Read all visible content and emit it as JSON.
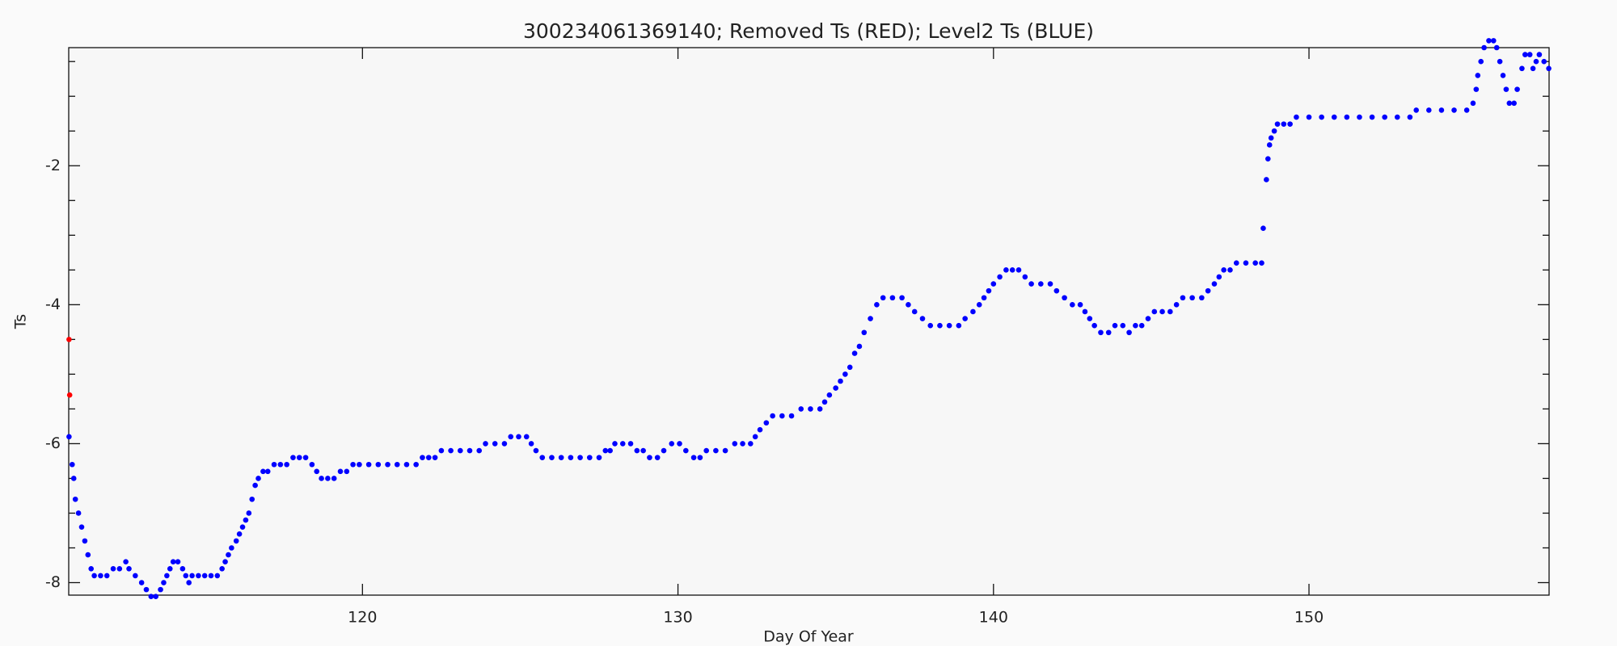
{
  "chart_data": {
    "type": "scatter",
    "title": "300234061369140; Removed Ts (RED); Level2 Ts (BLUE)",
    "x_label": "Day Of Year",
    "y_label": "Ts",
    "xlim": [
      110.69,
      157.61
    ],
    "ylim": [
      -8.18,
      -0.3
    ],
    "xticks": [
      120,
      130,
      140,
      150
    ],
    "yticks": [
      -2,
      -4,
      -6,
      -8
    ],
    "yminorticks": [
      -7.5,
      -7,
      -6.5,
      -5.5,
      -5,
      -4.5,
      -3.5,
      -3,
      -2.5,
      -1.5,
      -1,
      -0.5
    ],
    "series": [
      {
        "color": "#ff0000",
        "x": [
          110.7,
          110.72
        ],
        "values": [
          -4.5,
          -5.3
        ]
      },
      {
        "color": "#0000ff",
        "x": [
          110.7,
          110.8,
          110.85,
          110.9,
          111.0,
          111.1,
          111.2,
          111.3,
          111.4,
          111.5,
          111.7,
          111.9,
          112.1,
          112.3,
          112.5,
          112.6,
          112.8,
          113.0,
          113.15,
          113.3,
          113.45,
          113.6,
          113.7,
          113.8,
          113.9,
          114.0,
          114.15,
          114.3,
          114.4,
          114.5,
          114.6,
          114.8,
          115.0,
          115.2,
          115.4,
          115.55,
          115.65,
          115.75,
          115.85,
          116.0,
          116.1,
          116.2,
          116.3,
          116.4,
          116.5,
          116.6,
          116.7,
          116.85,
          117.0,
          117.2,
          117.4,
          117.6,
          117.8,
          118.0,
          118.2,
          118.4,
          118.55,
          118.7,
          118.9,
          119.1,
          119.3,
          119.5,
          119.7,
          119.9,
          120.2,
          120.5,
          120.8,
          121.1,
          121.4,
          121.7,
          121.9,
          122.1,
          122.3,
          122.5,
          122.8,
          123.1,
          123.4,
          123.7,
          123.9,
          124.2,
          124.5,
          124.7,
          124.95,
          125.2,
          125.35,
          125.5,
          125.7,
          126.0,
          126.3,
          126.6,
          126.9,
          127.2,
          127.5,
          127.7,
          127.85,
          128.0,
          128.25,
          128.5,
          128.7,
          128.9,
          129.1,
          129.35,
          129.55,
          129.8,
          130.05,
          130.25,
          130.5,
          130.7,
          130.9,
          131.2,
          131.5,
          131.8,
          132.05,
          132.3,
          132.45,
          132.6,
          132.8,
          133.0,
          133.3,
          133.6,
          133.9,
          134.2,
          134.5,
          134.65,
          134.8,
          135.0,
          135.15,
          135.3,
          135.45,
          135.6,
          135.75,
          135.9,
          136.1,
          136.3,
          136.5,
          136.8,
          137.1,
          137.3,
          137.5,
          137.75,
          138.0,
          138.3,
          138.6,
          138.9,
          139.1,
          139.35,
          139.55,
          139.7,
          139.85,
          140.0,
          140.2,
          140.4,
          140.6,
          140.8,
          141.0,
          141.2,
          141.5,
          141.8,
          142.0,
          142.25,
          142.5,
          142.75,
          142.9,
          143.05,
          143.2,
          143.4,
          143.65,
          143.85,
          144.1,
          144.3,
          144.5,
          144.7,
          144.9,
          145.1,
          145.35,
          145.6,
          145.8,
          146.0,
          146.3,
          146.6,
          146.8,
          147.0,
          147.15,
          147.3,
          147.5,
          147.7,
          148.0,
          148.3,
          148.5,
          148.55,
          148.65,
          148.7,
          148.75,
          148.8,
          148.9,
          149.0,
          149.2,
          149.4,
          149.6,
          150.0,
          150.4,
          150.8,
          151.2,
          151.6,
          152.0,
          152.4,
          152.8,
          153.2,
          153.4,
          153.8,
          154.2,
          154.6,
          155.0,
          155.2,
          155.3,
          155.35,
          155.45,
          155.55,
          155.7,
          155.85,
          155.95,
          156.05,
          156.15,
          156.25,
          156.35,
          156.5,
          156.6,
          156.75,
          156.85,
          157.0,
          157.1,
          157.2,
          157.3,
          157.45,
          157.6
        ],
        "values": [
          -5.9,
          -6.3,
          -6.5,
          -6.8,
          -7.0,
          -7.2,
          -7.4,
          -7.6,
          -7.8,
          -7.9,
          -7.9,
          -7.9,
          -7.8,
          -7.8,
          -7.7,
          -7.8,
          -7.9,
          -8.0,
          -8.1,
          -8.2,
          -8.2,
          -8.1,
          -8.0,
          -7.9,
          -7.8,
          -7.7,
          -7.7,
          -7.8,
          -7.9,
          -8.0,
          -7.9,
          -7.9,
          -7.9,
          -7.9,
          -7.9,
          -7.8,
          -7.7,
          -7.6,
          -7.5,
          -7.4,
          -7.3,
          -7.2,
          -7.1,
          -7.0,
          -6.8,
          -6.6,
          -6.5,
          -6.4,
          -6.4,
          -6.3,
          -6.3,
          -6.3,
          -6.2,
          -6.2,
          -6.2,
          -6.3,
          -6.4,
          -6.5,
          -6.5,
          -6.5,
          -6.4,
          -6.4,
          -6.3,
          -6.3,
          -6.3,
          -6.3,
          -6.3,
          -6.3,
          -6.3,
          -6.3,
          -6.2,
          -6.2,
          -6.2,
          -6.1,
          -6.1,
          -6.1,
          -6.1,
          -6.1,
          -6.0,
          -6.0,
          -6.0,
          -5.9,
          -5.9,
          -5.9,
          -6.0,
          -6.1,
          -6.2,
          -6.2,
          -6.2,
          -6.2,
          -6.2,
          -6.2,
          -6.2,
          -6.1,
          -6.1,
          -6.0,
          -6.0,
          -6.0,
          -6.1,
          -6.1,
          -6.2,
          -6.2,
          -6.1,
          -6.0,
          -6.0,
          -6.1,
          -6.2,
          -6.2,
          -6.1,
          -6.1,
          -6.1,
          -6.0,
          -6.0,
          -6.0,
          -5.9,
          -5.8,
          -5.7,
          -5.6,
          -5.6,
          -5.6,
          -5.5,
          -5.5,
          -5.5,
          -5.4,
          -5.3,
          -5.2,
          -5.1,
          -5.0,
          -4.9,
          -4.7,
          -4.6,
          -4.4,
          -4.2,
          -4.0,
          -3.9,
          -3.9,
          -3.9,
          -4.0,
          -4.1,
          -4.2,
          -4.3,
          -4.3,
          -4.3,
          -4.3,
          -4.2,
          -4.1,
          -4.0,
          -3.9,
          -3.8,
          -3.7,
          -3.6,
          -3.5,
          -3.5,
          -3.5,
          -3.6,
          -3.7,
          -3.7,
          -3.7,
          -3.8,
          -3.9,
          -4.0,
          -4.0,
          -4.1,
          -4.2,
          -4.3,
          -4.4,
          -4.4,
          -4.3,
          -4.3,
          -4.4,
          -4.3,
          -4.3,
          -4.2,
          -4.1,
          -4.1,
          -4.1,
          -4.0,
          -3.9,
          -3.9,
          -3.9,
          -3.8,
          -3.7,
          -3.6,
          -3.5,
          -3.5,
          -3.4,
          -3.4,
          -3.4,
          -3.4,
          -2.9,
          -2.2,
          -1.9,
          -1.7,
          -1.6,
          -1.5,
          -1.4,
          -1.4,
          -1.4,
          -1.3,
          -1.3,
          -1.3,
          -1.3,
          -1.3,
          -1.3,
          -1.3,
          -1.3,
          -1.3,
          -1.3,
          -1.2,
          -1.2,
          -1.2,
          -1.2,
          -1.2,
          -1.1,
          -0.9,
          -0.7,
          -0.5,
          -0.3,
          -0.2,
          -0.2,
          -0.3,
          -0.5,
          -0.7,
          -0.9,
          -1.1,
          -1.1,
          -0.9,
          -0.6,
          -0.4,
          -0.4,
          -0.6,
          -0.5,
          -0.4,
          -0.5,
          -0.6
        ]
      }
    ]
  }
}
